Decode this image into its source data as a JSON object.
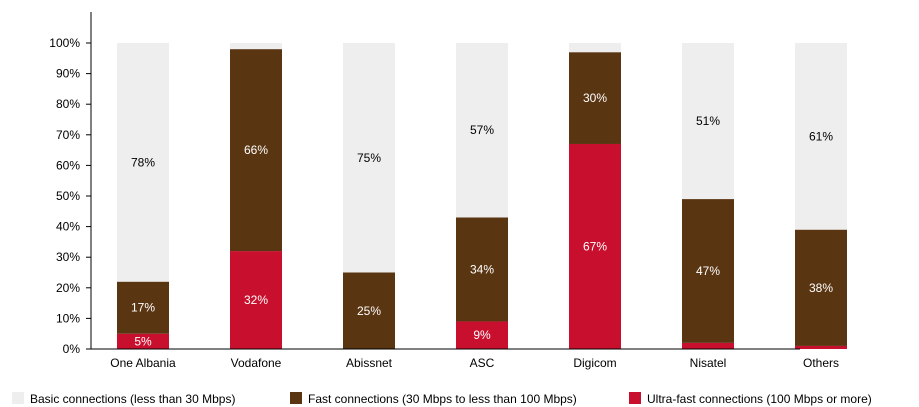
{
  "chart_data": {
    "type": "bar",
    "stacked": true,
    "categories": [
      "One Albania",
      "Vodafone",
      "Abissnet",
      "ASC",
      "Digicom",
      "Nisatel",
      "Others"
    ],
    "series": [
      {
        "name": "Ultra-fast connections (100 Mbps or more)",
        "color": "#c8102e",
        "label_color": "#ffffff",
        "values": [
          5,
          32,
          0,
          9,
          67,
          2,
          1
        ],
        "labels": [
          "5%",
          "32%",
          "",
          "9%",
          "67%",
          "",
          ""
        ]
      },
      {
        "name": "Fast connections (30 Mbps to less than 100 Mbps)",
        "color": "#5a3512",
        "label_color": "#ffffff",
        "values": [
          17,
          66,
          25,
          34,
          30,
          47,
          38
        ],
        "labels": [
          "17%",
          "66%",
          "25%",
          "34%",
          "30%",
          "47%",
          "38%"
        ]
      },
      {
        "name": "Basic connections (less than 30 Mbps)",
        "color": "#eeeeee",
        "label_color": "#000000",
        "values": [
          78,
          2,
          75,
          57,
          3,
          51,
          61
        ],
        "labels": [
          "78%",
          "",
          "75%",
          "57%",
          "",
          "51%",
          "61%"
        ]
      }
    ],
    "yticks": [
      "0%",
      "10%",
      "20%",
      "30%",
      "40%",
      "50%",
      "60%",
      "70%",
      "80%",
      "90%",
      "100%"
    ],
    "ylim": [
      0,
      100
    ],
    "legend_position": "bottom",
    "grid": false
  }
}
